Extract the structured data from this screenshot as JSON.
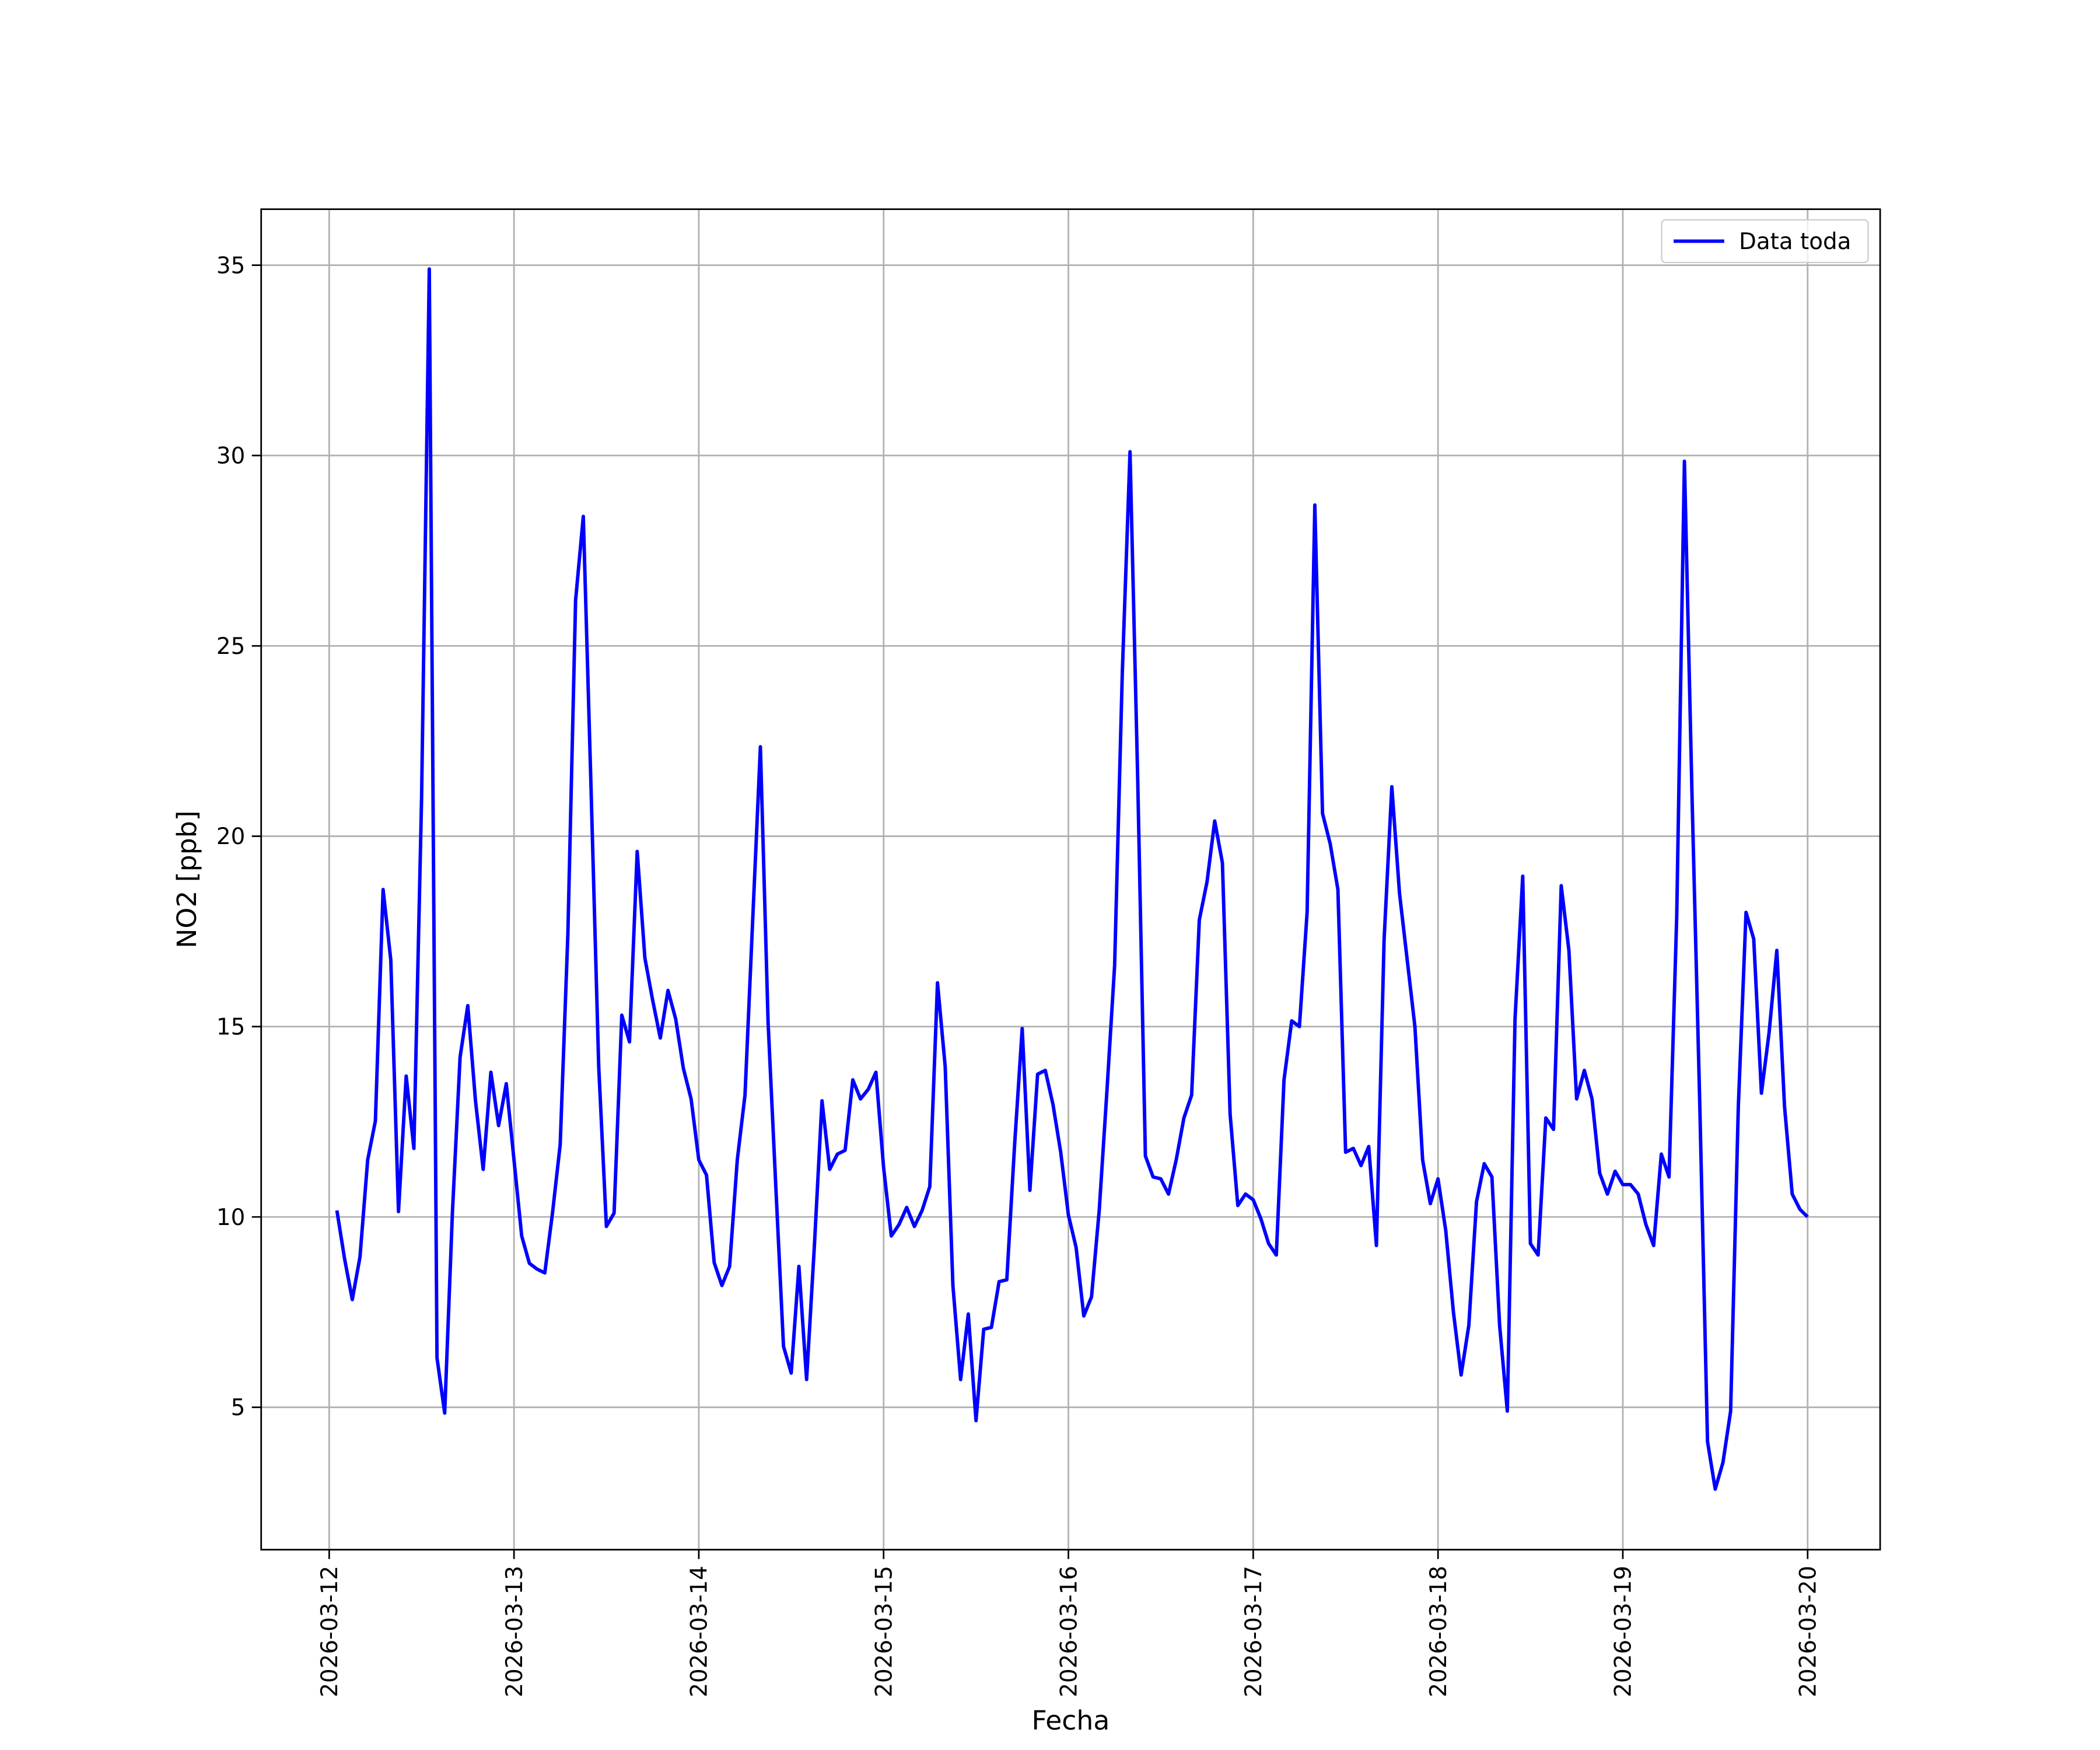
{
  "chart_data": {
    "type": "line",
    "xlabel": "Fecha",
    "ylabel": "NO2 [ppb]",
    "x": [
      "2026-03-12T01:00",
      "2026-03-12T02:00",
      "2026-03-12T03:00",
      "2026-03-12T04:00",
      "2026-03-12T05:00",
      "2026-03-12T06:00",
      "2026-03-12T07:00",
      "2026-03-12T08:00",
      "2026-03-12T09:00",
      "2026-03-12T10:00",
      "2026-03-12T11:00",
      "2026-03-12T12:00",
      "2026-03-12T13:00",
      "2026-03-12T14:00",
      "2026-03-12T15:00",
      "2026-03-12T16:00",
      "2026-03-12T17:00",
      "2026-03-12T18:00",
      "2026-03-12T19:00",
      "2026-03-12T20:00",
      "2026-03-12T21:00",
      "2026-03-12T22:00",
      "2026-03-12T23:00",
      "2026-03-13T00:00",
      "2026-03-13T01:00",
      "2026-03-13T02:00",
      "2026-03-13T03:00",
      "2026-03-13T04:00",
      "2026-03-13T05:00",
      "2026-03-13T06:00",
      "2026-03-13T07:00",
      "2026-03-13T08:00",
      "2026-03-13T09:00",
      "2026-03-13T10:00",
      "2026-03-13T11:00",
      "2026-03-13T12:00",
      "2026-03-13T13:00",
      "2026-03-13T14:00",
      "2026-03-13T15:00",
      "2026-03-13T16:00",
      "2026-03-13T17:00",
      "2026-03-13T18:00",
      "2026-03-13T19:00",
      "2026-03-13T20:00",
      "2026-03-13T21:00",
      "2026-03-13T22:00",
      "2026-03-13T23:00",
      "2026-03-14T00:00",
      "2026-03-14T01:00",
      "2026-03-14T02:00",
      "2026-03-14T03:00",
      "2026-03-14T04:00",
      "2026-03-14T05:00",
      "2026-03-14T06:00",
      "2026-03-14T07:00",
      "2026-03-14T08:00",
      "2026-03-14T09:00",
      "2026-03-14T10:00",
      "2026-03-14T11:00",
      "2026-03-14T12:00",
      "2026-03-14T13:00",
      "2026-03-14T14:00",
      "2026-03-14T15:00",
      "2026-03-14T16:00",
      "2026-03-14T17:00",
      "2026-03-14T18:00",
      "2026-03-14T19:00",
      "2026-03-14T20:00",
      "2026-03-14T21:00",
      "2026-03-14T22:00",
      "2026-03-14T23:00",
      "2026-03-15T00:00",
      "2026-03-15T01:00",
      "2026-03-15T02:00",
      "2026-03-15T03:00",
      "2026-03-15T04:00",
      "2026-03-15T05:00",
      "2026-03-15T06:00",
      "2026-03-15T07:00",
      "2026-03-15T08:00",
      "2026-03-15T09:00",
      "2026-03-15T10:00",
      "2026-03-15T11:00",
      "2026-03-15T12:00",
      "2026-03-15T13:00",
      "2026-03-15T14:00",
      "2026-03-15T15:00",
      "2026-03-15T16:00",
      "2026-03-15T17:00",
      "2026-03-15T18:00",
      "2026-03-15T19:00",
      "2026-03-15T20:00",
      "2026-03-15T21:00",
      "2026-03-15T22:00",
      "2026-03-15T23:00",
      "2026-03-16T00:00",
      "2026-03-16T01:00",
      "2026-03-16T02:00",
      "2026-03-16T03:00",
      "2026-03-16T04:00",
      "2026-03-16T05:00",
      "2026-03-16T06:00",
      "2026-03-16T07:00",
      "2026-03-16T08:00",
      "2026-03-16T09:00",
      "2026-03-16T10:00",
      "2026-03-16T11:00",
      "2026-03-16T12:00",
      "2026-03-16T13:00",
      "2026-03-16T14:00",
      "2026-03-16T15:00",
      "2026-03-16T16:00",
      "2026-03-16T17:00",
      "2026-03-16T18:00",
      "2026-03-16T19:00",
      "2026-03-16T20:00",
      "2026-03-16T21:00",
      "2026-03-16T22:00",
      "2026-03-16T23:00",
      "2026-03-17T00:00",
      "2026-03-17T01:00",
      "2026-03-17T02:00",
      "2026-03-17T03:00",
      "2026-03-17T04:00",
      "2026-03-17T05:00",
      "2026-03-17T06:00",
      "2026-03-17T07:00",
      "2026-03-17T08:00",
      "2026-03-17T09:00",
      "2026-03-17T10:00",
      "2026-03-17T11:00",
      "2026-03-17T12:00",
      "2026-03-17T13:00",
      "2026-03-17T14:00",
      "2026-03-17T15:00",
      "2026-03-17T16:00",
      "2026-03-17T17:00",
      "2026-03-17T18:00",
      "2026-03-17T19:00",
      "2026-03-17T20:00",
      "2026-03-17T21:00",
      "2026-03-17T22:00",
      "2026-03-17T23:00",
      "2026-03-18T00:00",
      "2026-03-18T01:00",
      "2026-03-18T02:00",
      "2026-03-18T03:00",
      "2026-03-18T04:00",
      "2026-03-18T05:00",
      "2026-03-18T06:00",
      "2026-03-18T07:00",
      "2026-03-18T08:00",
      "2026-03-18T09:00",
      "2026-03-18T10:00",
      "2026-03-18T11:00",
      "2026-03-18T12:00",
      "2026-03-18T13:00",
      "2026-03-18T14:00",
      "2026-03-18T15:00",
      "2026-03-18T16:00",
      "2026-03-18T17:00",
      "2026-03-18T18:00",
      "2026-03-18T19:00",
      "2026-03-18T20:00",
      "2026-03-18T21:00",
      "2026-03-18T22:00",
      "2026-03-18T23:00",
      "2026-03-19T00:00",
      "2026-03-19T01:00",
      "2026-03-19T02:00",
      "2026-03-19T03:00",
      "2026-03-19T04:00",
      "2026-03-19T05:00",
      "2026-03-19T06:00",
      "2026-03-19T07:00",
      "2026-03-19T08:00",
      "2026-03-19T09:00",
      "2026-03-19T10:00",
      "2026-03-19T11:00",
      "2026-03-19T12:00",
      "2026-03-19T13:00",
      "2026-03-19T14:00",
      "2026-03-19T15:00",
      "2026-03-19T16:00",
      "2026-03-19T17:00",
      "2026-03-19T18:00",
      "2026-03-19T19:00",
      "2026-03-19T20:00",
      "2026-03-19T21:00",
      "2026-03-19T22:00",
      "2026-03-19T23:00",
      "2026-03-20T00:00"
    ],
    "series": [
      {
        "name": "Data toda",
        "color": "#0000ff",
        "values": [
          10.17,
          8.9,
          7.83,
          8.95,
          11.5,
          12.52,
          18.6,
          16.75,
          10.14,
          13.7,
          11.8,
          21,
          34.9,
          6.3,
          4.85,
          10.1,
          14.2,
          15.55,
          13.05,
          11.25,
          13.8,
          12.4,
          13.5,
          11.5,
          9.5,
          8.78,
          8.63,
          8.53,
          10.1,
          11.9,
          17.45,
          26.2,
          28.4,
          21.3,
          13.96,
          9.75,
          10.1,
          15.3,
          14.6,
          19.6,
          16.8,
          15.7,
          14.7,
          15.95,
          15.2,
          13.9,
          13.1,
          11.5,
          11.1,
          8.8,
          8.2,
          8.7,
          11.5,
          13.2,
          17.8,
          22.35,
          15.1,
          10.8,
          6.6,
          5.9,
          8.7,
          5.73,
          9.2,
          13.05,
          11.25,
          11.65,
          11.75,
          13.6,
          13.1,
          13.35,
          13.8,
          11.3,
          9.5,
          9.8,
          10.25,
          9.75,
          10.17,
          10.8,
          16.15,
          13.95,
          8.2,
          5.73,
          7.45,
          4.65,
          7.05,
          7.1,
          8.3,
          8.35,
          11.85,
          14.95,
          10.7,
          13.75,
          13.85,
          12.95,
          11.7,
          10.05,
          9.2,
          7.4,
          7.9,
          10.17,
          13.3,
          16.6,
          24.3,
          30.1,
          21.5,
          11.6,
          11.05,
          11.0,
          10.6,
          11.5,
          12.6,
          13.2,
          17.8,
          18.8,
          20.4,
          19.3,
          12.7,
          10.3,
          10.6,
          10.45,
          9.95,
          9.3,
          9.0,
          13.6,
          15.15,
          15.0,
          18.0,
          28.7,
          20.6,
          19.8,
          18.6,
          11.7,
          11.8,
          11.35,
          11.85,
          9.25,
          17.3,
          21.3,
          18.5,
          16.75,
          15.0,
          11.5,
          10.35,
          11.0,
          9.65,
          7.5,
          5.85,
          7.15,
          10.4,
          11.4,
          11.05,
          7.15,
          4.9,
          15.2,
          18.95,
          9.3,
          9.0,
          12.6,
          12.3,
          18.7,
          17.0,
          13.1,
          13.85,
          13.1,
          11.15,
          10.6,
          11.2,
          10.85,
          10.85,
          10.6,
          9.8,
          9.25,
          11.65,
          11.05,
          17.9,
          29.85,
          20.95,
          12.9,
          4.1,
          2.85,
          3.55,
          4.9,
          12.9,
          18.0,
          17.3,
          13.25,
          14.85,
          17.0,
          12.9,
          10.6,
          10.2,
          10.0
        ]
      }
    ],
    "xlim": [
      "2026-03-11T15:10",
      "2026-03-20T09:25"
    ],
    "xticks": [
      "2026-03-12",
      "2026-03-13",
      "2026-03-14",
      "2026-03-15",
      "2026-03-16",
      "2026-03-17",
      "2026-03-18",
      "2026-03-19",
      "2026-03-20"
    ],
    "ylim": [
      1.26,
      36.47
    ],
    "yticks": [
      5,
      10,
      15,
      20,
      25,
      30,
      35
    ],
    "grid": true,
    "legend": "upper right"
  }
}
